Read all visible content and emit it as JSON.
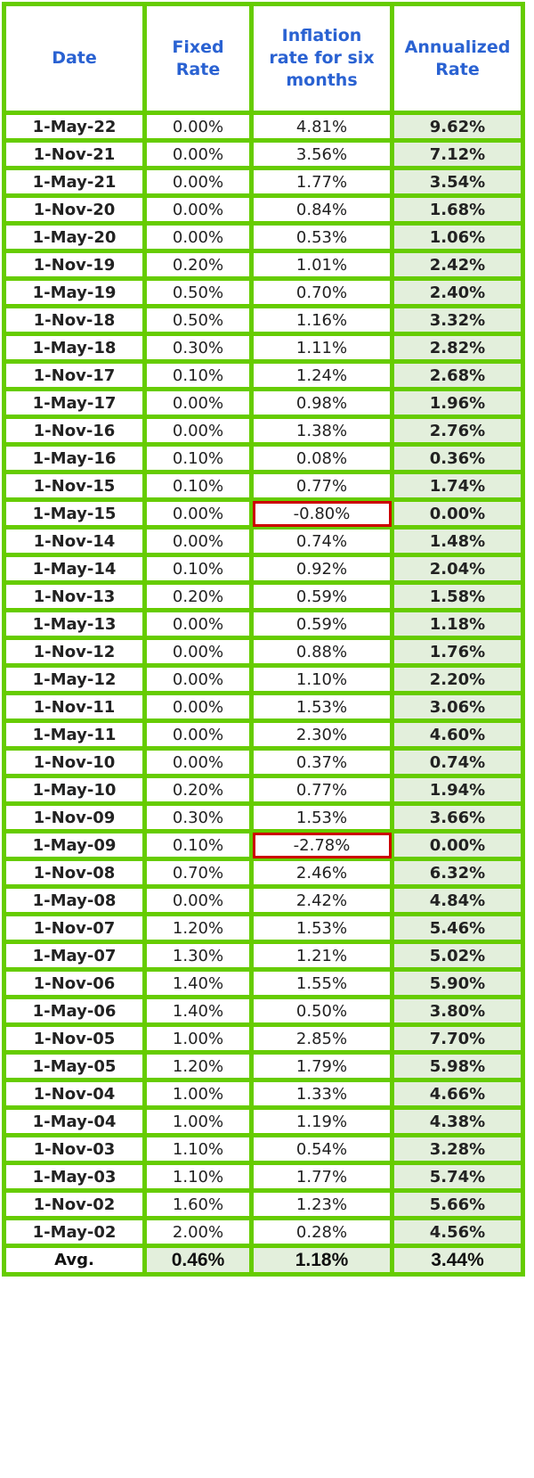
{
  "header": [
    "Date",
    "Fixed Rate",
    "Inflation rate for six months",
    "Annualized Rate"
  ],
  "colors": {
    "border": "#66cc00",
    "header_text": "#2a62d2",
    "annualized_bg": "#e3efdc",
    "highlight": "#cc0000"
  },
  "rows": [
    [
      "1-May-22",
      "0.00%",
      "4.81%",
      "9.62%"
    ],
    [
      "1-Nov-21",
      "0.00%",
      "3.56%",
      "7.12%"
    ],
    [
      "1-May-21",
      "0.00%",
      "1.77%",
      "3.54%"
    ],
    [
      "1-Nov-20",
      "0.00%",
      "0.84%",
      "1.68%"
    ],
    [
      "1-May-20",
      "0.00%",
      "0.53%",
      "1.06%"
    ],
    [
      "1-Nov-19",
      "0.20%",
      "1.01%",
      "2.42%"
    ],
    [
      "1-May-19",
      "0.50%",
      "0.70%",
      "2.40%"
    ],
    [
      "1-Nov-18",
      "0.50%",
      "1.16%",
      "3.32%"
    ],
    [
      "1-May-18",
      "0.30%",
      "1.11%",
      "2.82%"
    ],
    [
      "1-Nov-17",
      "0.10%",
      "1.24%",
      "2.68%"
    ],
    [
      "1-May-17",
      "0.00%",
      "0.98%",
      "1.96%"
    ],
    [
      "1-Nov-16",
      "0.00%",
      "1.38%",
      "2.76%"
    ],
    [
      "1-May-16",
      "0.10%",
      "0.08%",
      "0.36%"
    ],
    [
      "1-Nov-15",
      "0.10%",
      "0.77%",
      "1.74%"
    ],
    [
      "1-May-15",
      "0.00%",
      "-0.80%",
      "0.00%"
    ],
    [
      "1-Nov-14",
      "0.00%",
      "0.74%",
      "1.48%"
    ],
    [
      "1-May-14",
      "0.10%",
      "0.92%",
      "2.04%"
    ],
    [
      "1-Nov-13",
      "0.20%",
      "0.59%",
      "1.58%"
    ],
    [
      "1-May-13",
      "0.00%",
      "0.59%",
      "1.18%"
    ],
    [
      "1-Nov-12",
      "0.00%",
      "0.88%",
      "1.76%"
    ],
    [
      "1-May-12",
      "0.00%",
      "1.10%",
      "2.20%"
    ],
    [
      "1-Nov-11",
      "0.00%",
      "1.53%",
      "3.06%"
    ],
    [
      "1-May-11",
      "0.00%",
      "2.30%",
      "4.60%"
    ],
    [
      "1-Nov-10",
      "0.00%",
      "0.37%",
      "0.74%"
    ],
    [
      "1-May-10",
      "0.20%",
      "0.77%",
      "1.94%"
    ],
    [
      "1-Nov-09",
      "0.30%",
      "1.53%",
      "3.66%"
    ],
    [
      "1-May-09",
      "0.10%",
      "-2.78%",
      "0.00%"
    ],
    [
      "1-Nov-08",
      "0.70%",
      "2.46%",
      "6.32%"
    ],
    [
      "1-May-08",
      "0.00%",
      "2.42%",
      "4.84%"
    ],
    [
      "1-Nov-07",
      "1.20%",
      "1.53%",
      "5.46%"
    ],
    [
      "1-May-07",
      "1.30%",
      "1.21%",
      "5.02%"
    ],
    [
      "1-Nov-06",
      "1.40%",
      "1.55%",
      "5.90%"
    ],
    [
      "1-May-06",
      "1.40%",
      "0.50%",
      "3.80%"
    ],
    [
      "1-Nov-05",
      "1.00%",
      "2.85%",
      "7.70%"
    ],
    [
      "1-May-05",
      "1.20%",
      "1.79%",
      "5.98%"
    ],
    [
      "1-Nov-04",
      "1.00%",
      "1.33%",
      "4.66%"
    ],
    [
      "1-May-04",
      "1.00%",
      "1.19%",
      "4.38%"
    ],
    [
      "1-Nov-03",
      "1.10%",
      "0.54%",
      "3.28%"
    ],
    [
      "1-May-03",
      "1.10%",
      "1.77%",
      "5.74%"
    ],
    [
      "1-Nov-02",
      "1.60%",
      "1.23%",
      "5.66%"
    ],
    [
      "1-May-02",
      "2.00%",
      "0.28%",
      "4.56%"
    ]
  ],
  "highlighted_negative_inflation": [
    "1-May-15",
    "1-May-09"
  ],
  "average": [
    "Avg.",
    "0.46%",
    "1.18%",
    "3.44%"
  ]
}
